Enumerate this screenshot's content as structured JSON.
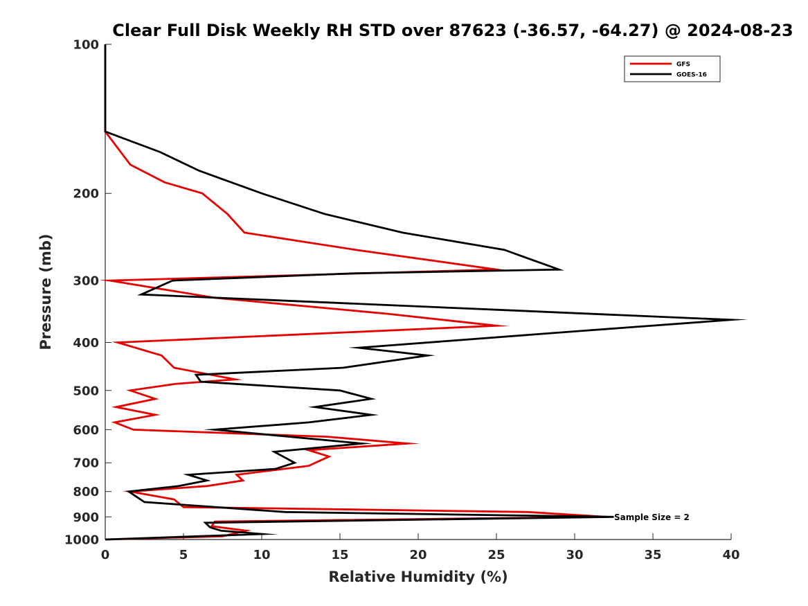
{
  "chart_data": {
    "type": "line",
    "title": "Clear Full Disk Weekly RH STD over 87623 (-36.57, -64.27) @ 2024-08-23",
    "xlabel": "Relative Humidity (%)",
    "ylabel": "Pressure (mb)",
    "xlim": [
      0,
      40
    ],
    "ylim": [
      100,
      1000
    ],
    "yscale": "log",
    "y_reversed": true,
    "x_ticks": [
      "0",
      "5",
      "10",
      "15",
      "20",
      "25",
      "30",
      "35",
      "40"
    ],
    "y_ticks": [
      "100",
      "200",
      "300",
      "400",
      "500",
      "600",
      "700",
      "800",
      "900",
      "1000"
    ],
    "grid": false,
    "legend_position": "top-right",
    "series": [
      {
        "name": "GFS",
        "color": "#e60000",
        "points": [
          [
            0,
            100
          ],
          [
            0,
            150
          ],
          [
            1.6,
            175
          ],
          [
            3.8,
            190
          ],
          [
            6.2,
            200
          ],
          [
            7.8,
            220
          ],
          [
            8.9,
            240
          ],
          [
            16,
            260
          ],
          [
            25,
            285
          ],
          [
            0.3,
            300
          ],
          [
            7,
            325
          ],
          [
            18,
            350
          ],
          [
            25,
            370
          ],
          [
            0.8,
            400
          ],
          [
            3.6,
            425
          ],
          [
            4.4,
            450
          ],
          [
            8.3,
            475
          ],
          [
            4.5,
            485
          ],
          [
            1.6,
            500
          ],
          [
            3.2,
            520
          ],
          [
            0.7,
            540
          ],
          [
            3.2,
            560
          ],
          [
            0.6,
            580
          ],
          [
            1.8,
            600
          ],
          [
            14.2,
            620
          ],
          [
            19.3,
            640
          ],
          [
            13,
            660
          ],
          [
            14.3,
            680
          ],
          [
            13,
            710
          ],
          [
            8.4,
            740
          ],
          [
            8.8,
            760
          ],
          [
            6.5,
            780
          ],
          [
            1.6,
            800
          ],
          [
            4.4,
            830
          ],
          [
            5,
            860
          ],
          [
            27,
            880
          ],
          [
            32,
            900
          ],
          [
            7,
            920
          ],
          [
            6.8,
            940
          ],
          [
            9,
            960
          ],
          [
            7.5,
            985
          ],
          [
            0,
            1000
          ]
        ]
      },
      {
        "name": "GOES-16",
        "color": "#000000",
        "points": [
          [
            0,
            100
          ],
          [
            0,
            150
          ],
          [
            3.5,
            165
          ],
          [
            6,
            180
          ],
          [
            10,
            200
          ],
          [
            14,
            220
          ],
          [
            19,
            240
          ],
          [
            25.5,
            260
          ],
          [
            29,
            285
          ],
          [
            16,
            290
          ],
          [
            4.3,
            300
          ],
          [
            2.3,
            320
          ],
          [
            40,
            360
          ],
          [
            30,
            380
          ],
          [
            16.2,
            410
          ],
          [
            20.6,
            425
          ],
          [
            15.2,
            450
          ],
          [
            5.8,
            465
          ],
          [
            6.1,
            480
          ],
          [
            15,
            500
          ],
          [
            17,
            520
          ],
          [
            13.4,
            540
          ],
          [
            17,
            560
          ],
          [
            13,
            580
          ],
          [
            7,
            600
          ],
          [
            16.4,
            640
          ],
          [
            10.8,
            665
          ],
          [
            12.1,
            700
          ],
          [
            10.9,
            720
          ],
          [
            5.3,
            740
          ],
          [
            6.5,
            760
          ],
          [
            4.7,
            780
          ],
          [
            1.5,
            800
          ],
          [
            2.5,
            840
          ],
          [
            11.5,
            880
          ],
          [
            32.5,
            900
          ],
          [
            6.4,
            925
          ],
          [
            6.7,
            945
          ],
          [
            7.4,
            960
          ],
          [
            10,
            975
          ],
          [
            0,
            1000
          ]
        ]
      }
    ],
    "annotations": [
      "Sample Size = 2"
    ]
  }
}
